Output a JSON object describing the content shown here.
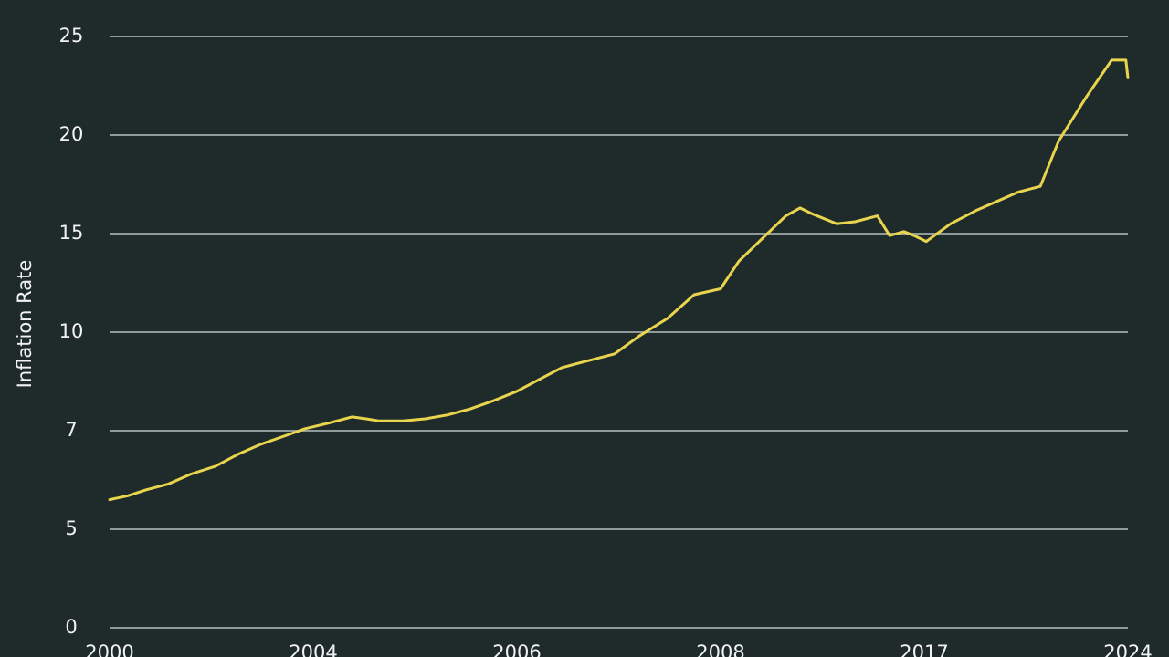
{
  "chart_data": {
    "type": "line",
    "y_label": "Inflation Rate",
    "xlim": [
      0,
      50
    ],
    "xticks": [
      {
        "value": 0,
        "label": "2000"
      },
      {
        "value": 10,
        "label": "2004"
      },
      {
        "value": 20,
        "label": "2006"
      },
      {
        "value": 30,
        "label": "2008"
      },
      {
        "value": 40,
        "label": "2017"
      },
      {
        "value": 50,
        "label": "2024"
      }
    ],
    "ylim": [
      -5,
      25
    ],
    "yticks": [
      {
        "value": -5,
        "label": "0"
      },
      {
        "value": 0,
        "label": "5"
      },
      {
        "value": 5,
        "label": "7"
      },
      10,
      15,
      20,
      25
    ],
    "grid": true,
    "series": [
      {
        "color": "#e8d44d",
        "x": [
          0,
          0.9,
          1.8,
          2.9,
          4.0,
          5.2,
          6.3,
          7.4,
          8.5,
          9.6,
          10.8,
          11.9,
          12.6,
          13.2,
          14.4,
          15.5,
          16.6,
          17.7,
          18.8,
          20.0,
          21.1,
          22.2,
          23.3,
          24.8,
          26.0,
          27.4,
          28.7,
          30.0,
          30.9,
          32.1,
          33.2,
          33.9,
          34.5,
          35.7,
          36.6,
          37.7,
          38.3,
          39.0,
          39.5,
          40.1,
          41.3,
          42.6,
          44.6,
          45.7,
          46.6,
          48.0,
          49.2,
          49.9,
          50.0
        ],
        "values": [
          1.5,
          1.7,
          2.0,
          2.3,
          2.8,
          3.2,
          3.8,
          4.3,
          4.7,
          5.1,
          5.4,
          5.7,
          5.6,
          5.5,
          5.5,
          5.6,
          5.8,
          6.1,
          6.5,
          7.0,
          7.6,
          8.2,
          8.5,
          8.9,
          9.8,
          10.7,
          11.9,
          12.2,
          13.6,
          14.8,
          15.9,
          16.3,
          16.0,
          15.5,
          15.6,
          15.9,
          14.9,
          15.1,
          14.9,
          14.6,
          15.5,
          16.2,
          17.1,
          17.4,
          19.7,
          22.0,
          23.8,
          23.8,
          22.9
        ]
      }
    ]
  }
}
